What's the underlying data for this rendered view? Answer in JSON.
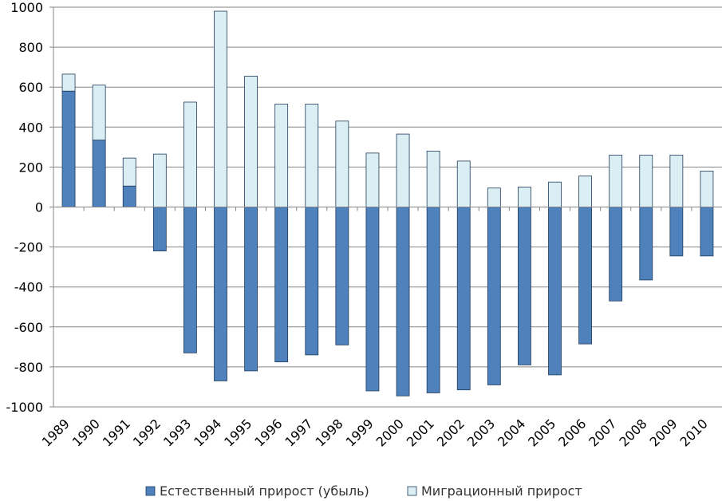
{
  "chart_data": {
    "type": "bar",
    "stacked": true,
    "categories": [
      "1989",
      "1990",
      "1991",
      "1992",
      "1993",
      "1994",
      "1995",
      "1996",
      "1997",
      "1998",
      "1999",
      "2000",
      "2001",
      "2002",
      "2003",
      "2004",
      "2005",
      "2006",
      "2007",
      "2008",
      "2009",
      "2010"
    ],
    "series": [
      {
        "name": "Естественный прирост (убыль)",
        "color": "#4f81bd",
        "values": [
          580,
          335,
          105,
          -220,
          -730,
          -870,
          -820,
          -775,
          -740,
          -690,
          -920,
          -945,
          -930,
          -915,
          -890,
          -790,
          -840,
          -685,
          -470,
          -365,
          -245,
          -245
        ]
      },
      {
        "name": "Миграционный прирост",
        "color": "#dbeef4",
        "values": [
          85,
          275,
          140,
          265,
          525,
          980,
          655,
          515,
          515,
          430,
          270,
          365,
          280,
          230,
          95,
          100,
          125,
          155,
          260,
          260,
          260,
          180
        ]
      }
    ],
    "ylim": [
      -1000,
      1000
    ],
    "yticks": [
      "1000",
      "800",
      "600",
      "400",
      "200",
      "0",
      "-200",
      "-400",
      "-600",
      "-800",
      "-1000"
    ],
    "grid": true,
    "legend_position": "bottom",
    "title": "",
    "xlabel": "",
    "ylabel": ""
  }
}
